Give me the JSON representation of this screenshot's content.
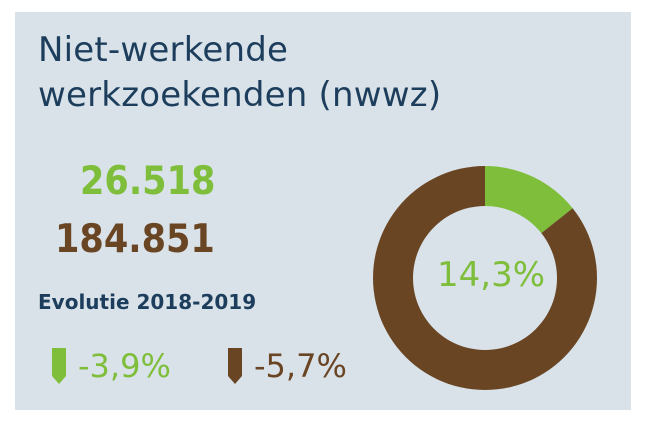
{
  "title": [
    "Niet-werkende",
    "werkzoekenden (nwwz)"
  ],
  "values": {
    "green": "26.518",
    "brown": "184.851"
  },
  "evolution": {
    "label": "Evolutie 2018-2019",
    "green_change": "-3,9%",
    "brown_change": "-5,7%"
  },
  "colors": {
    "green": "#7fbe3a",
    "brown": "#6a4524",
    "title": "#1d3d5c",
    "background": "#d8e2e8"
  },
  "chart_data": {
    "type": "pie",
    "style": "donut",
    "center_label": "14,3%",
    "slices": [
      {
        "value": 14.3,
        "color": "#7fbe3a"
      },
      {
        "value": 85.7,
        "color": "#6a4524"
      }
    ]
  }
}
